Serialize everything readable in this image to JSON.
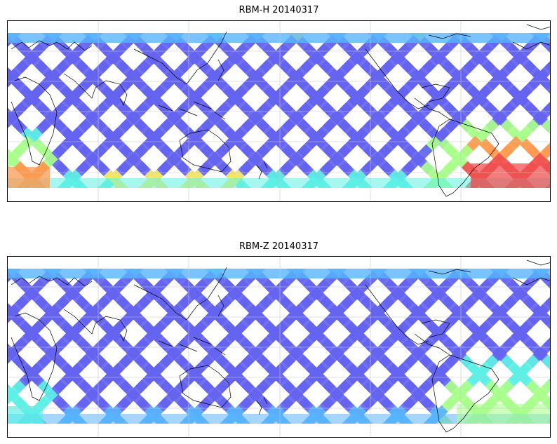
{
  "figure": {
    "panels": [
      {
        "id": "top",
        "title": "RBM-H 20140317",
        "variant": "H"
      },
      {
        "id": "bottom",
        "title": "RBM-Z 20140317",
        "variant": "Z"
      }
    ]
  },
  "colors": {
    "track_low": "#6464f0",
    "track_mid": "#5ab4ff",
    "track_cyan": "#5ef0e6",
    "track_green": "#aaff8c",
    "track_yellow": "#ffee60",
    "track_orange": "#ff9a50",
    "track_red": "#f05050",
    "coastline": "#000000",
    "gridline": "#c8c8c8"
  }
}
